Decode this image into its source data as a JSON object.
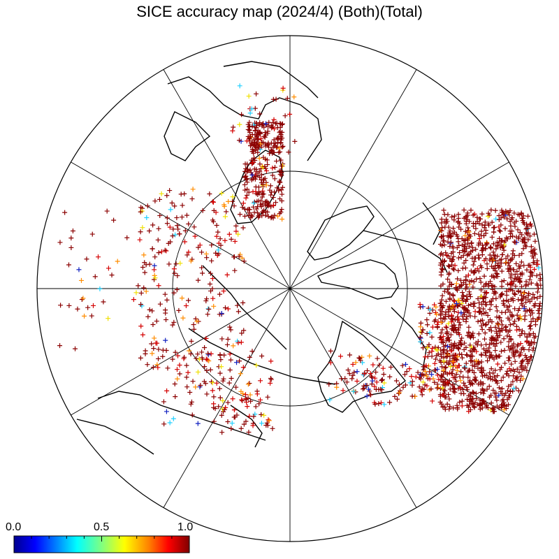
{
  "title": "SICE accuracy map (2024/4) (Both)(Total)",
  "colorbar": {
    "labels": [
      "0.0",
      "0.5",
      "1.0"
    ],
    "colors": [
      "#00008f",
      "#0000ff",
      "#0080ff",
      "#00ffff",
      "#80ff80",
      "#ffff00",
      "#ff8000",
      "#ff0000",
      "#800000"
    ]
  },
  "marker_colors": {
    "dark_red": "#8b0000",
    "red": "#d40000",
    "orange": "#ff8c00",
    "yellow": "#f0e000",
    "cyan": "#20d0ff",
    "blue": "#1020c0"
  }
}
